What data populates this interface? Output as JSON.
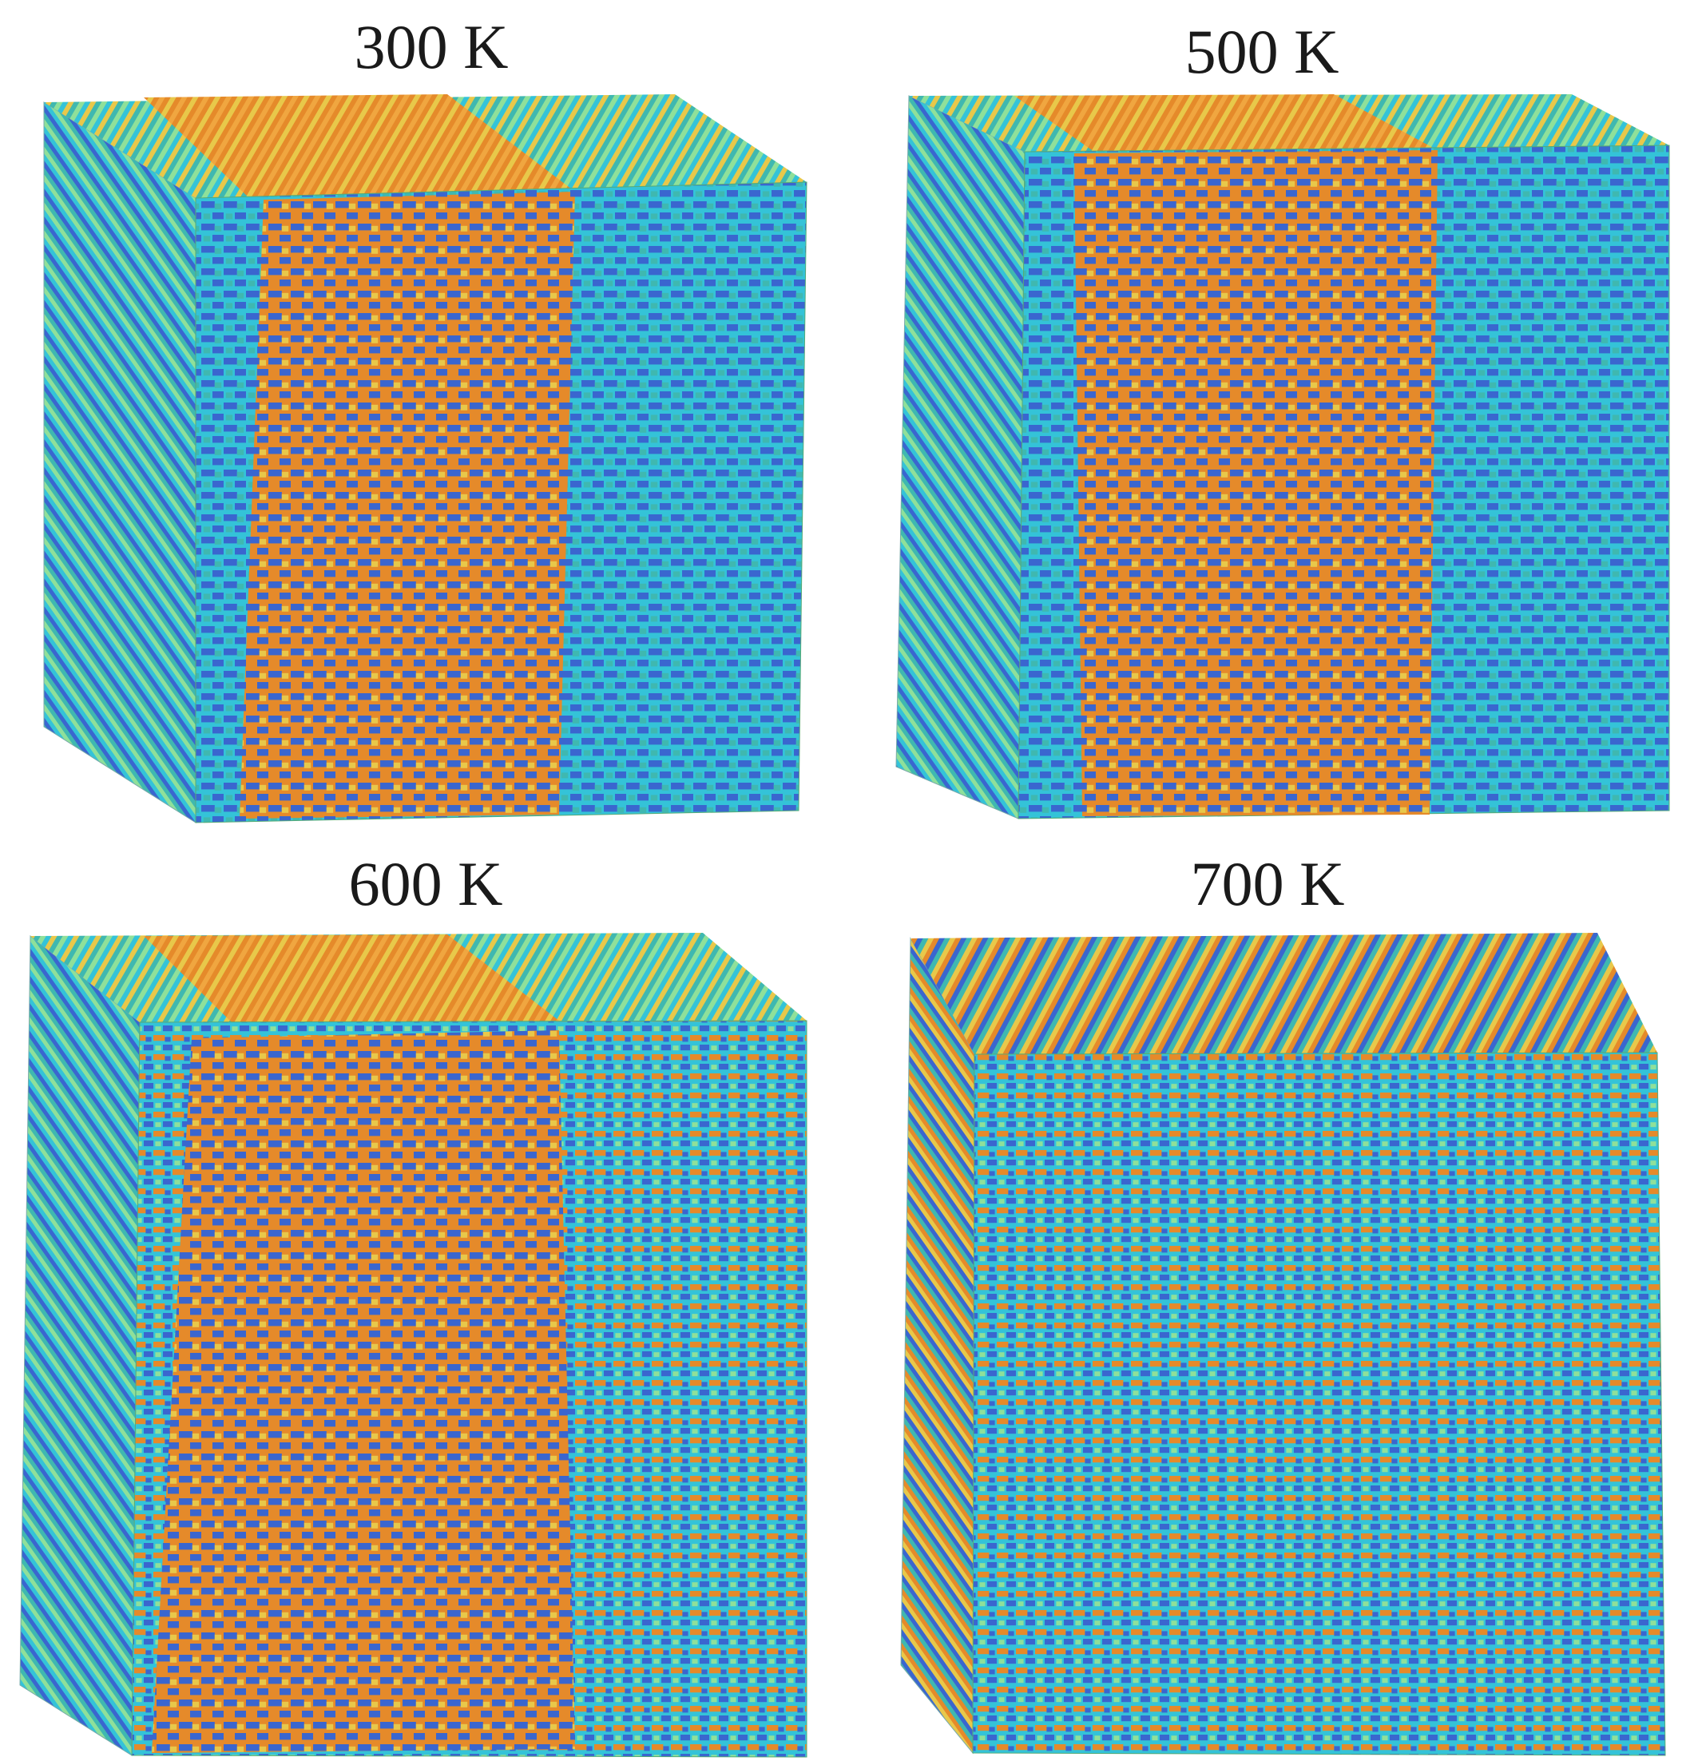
{
  "panels": [
    {
      "id": "300",
      "label": "300 K"
    },
    {
      "id": "500",
      "label": "500 K"
    },
    {
      "id": "600",
      "label": "600 K"
    },
    {
      "id": "700",
      "label": "700 K"
    }
  ],
  "colors": {
    "orange": "#e58a2a",
    "yellow": "#e8c84a",
    "teal": "#3fb8b0",
    "cyan": "#34c3d8",
    "blue": "#3a66cf",
    "green": "#8fe09a",
    "background": "#ffffff"
  }
}
